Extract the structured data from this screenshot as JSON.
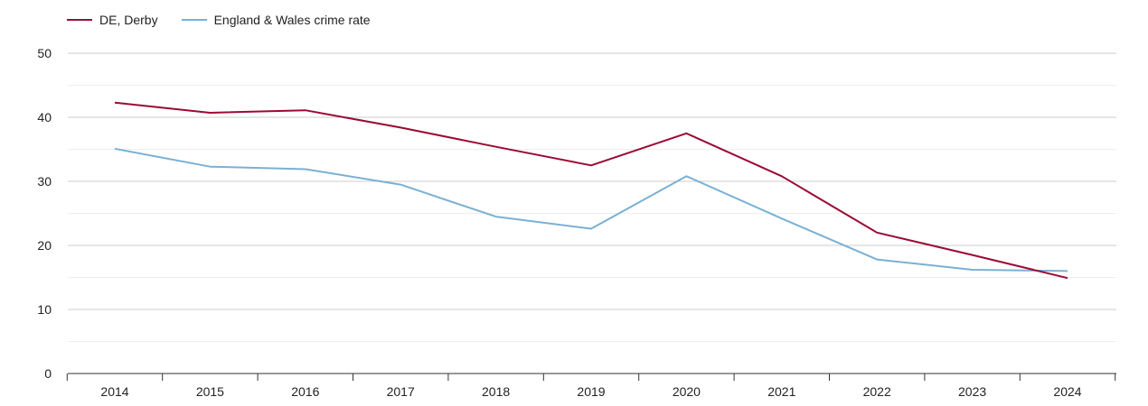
{
  "chart_data": {
    "type": "line",
    "title": "",
    "xlabel": "",
    "ylabel": "",
    "x": [
      "2014",
      "2015",
      "2016",
      "2017",
      "2018",
      "2019",
      "2020",
      "2021",
      "2022",
      "2023",
      "2024"
    ],
    "ylim": [
      0,
      50
    ],
    "yticks": [
      "0",
      "10",
      "20",
      "30",
      "40",
      "50"
    ],
    "grid": true,
    "legend_position": "top-left",
    "series": [
      {
        "name": "DE, Derby",
        "color": "#9b0a34",
        "values": [
          42.3,
          40.7,
          41.1,
          38.4,
          35.4,
          32.5,
          37.5,
          30.8,
          22.0,
          18.5,
          14.9
        ]
      },
      {
        "name": "England & Wales crime rate",
        "color": "#7ab0d4",
        "values": [
          35.1,
          32.3,
          31.9,
          29.5,
          24.5,
          22.6,
          30.8,
          24.2,
          17.8,
          16.2,
          16.0
        ]
      }
    ]
  }
}
